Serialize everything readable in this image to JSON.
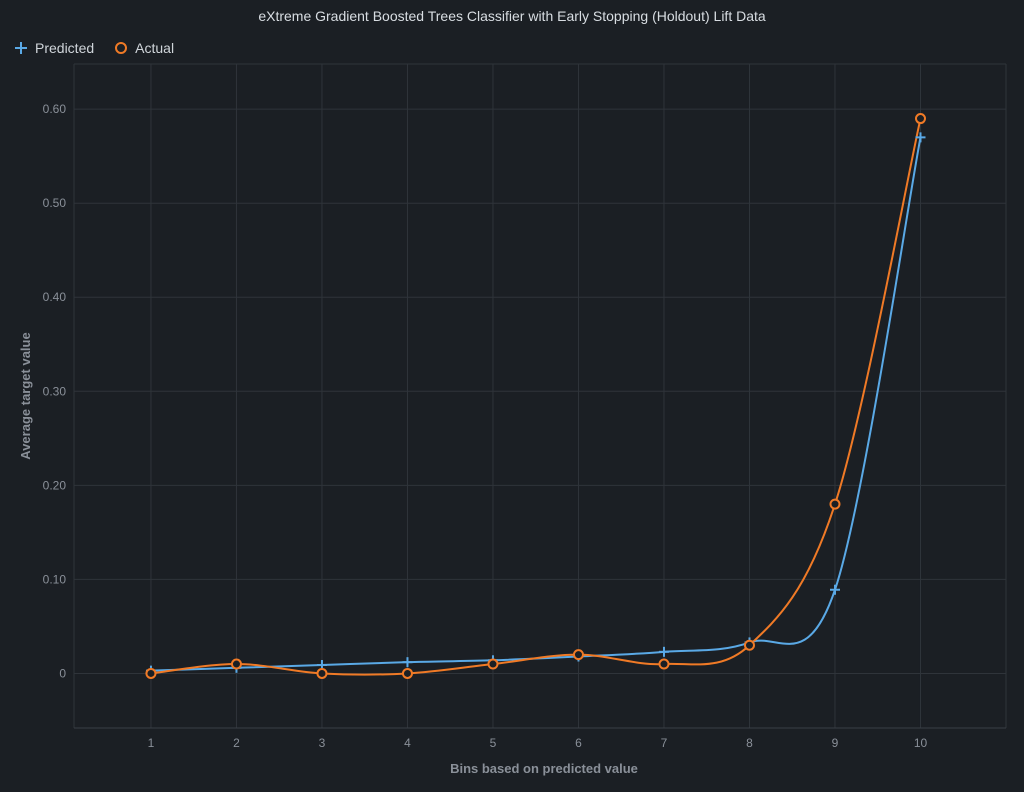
{
  "chart_data": {
    "type": "line",
    "title": "eXtreme Gradient Boosted Trees Classifier with Early Stopping (Holdout) Lift Data",
    "xlabel": "Bins based on predicted value",
    "ylabel": "Average target value",
    "x": [
      1,
      2,
      3,
      4,
      5,
      6,
      7,
      8,
      9,
      10
    ],
    "xlim": [
      0.1,
      11.0
    ],
    "ylim": [
      -0.058,
      0.648
    ],
    "yticks": [
      0,
      0.1,
      0.2,
      0.3,
      0.4,
      0.5,
      0.6
    ],
    "ytick_labels": [
      "0",
      "0.10",
      "0.20",
      "0.30",
      "0.40",
      "0.50",
      "0.60"
    ],
    "xtick_labels": [
      "1",
      "2",
      "3",
      "4",
      "5",
      "6",
      "7",
      "8",
      "9",
      "10"
    ],
    "grid": true,
    "legend_position": "top-left",
    "series": [
      {
        "name": "Predicted",
        "marker": "plus",
        "color": "#5aa9e6",
        "values": [
          0.003,
          0.006,
          0.009,
          0.012,
          0.014,
          0.018,
          0.023,
          0.033,
          0.089,
          0.57
        ]
      },
      {
        "name": "Actual",
        "marker": "circle",
        "color": "#f07a26",
        "values": [
          0.0,
          0.01,
          0.0,
          0.0,
          0.01,
          0.02,
          0.01,
          0.03,
          0.18,
          0.59
        ]
      }
    ]
  },
  "colors": {
    "background": "#1b1f24",
    "grid": "#2f343a",
    "tick_text": "#8a9099"
  }
}
